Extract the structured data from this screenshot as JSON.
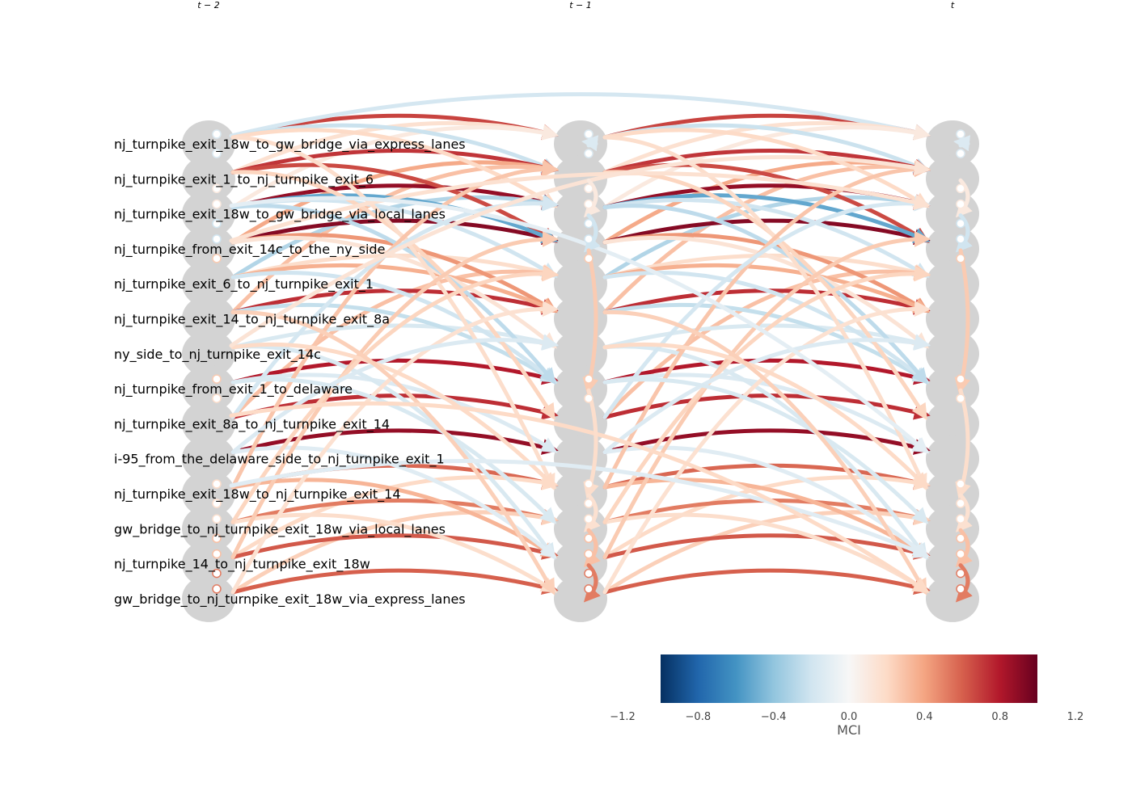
{
  "time_labels": [
    "t − 2",
    "t − 1",
    "t"
  ],
  "variables": [
    "nj_turnpike_exit_18w_to_gw_bridge_via_express_lanes",
    "nj_turnpike_exit_1_to_nj_turnpike_exit_6",
    "nj_turnpike_exit_18w_to_gw_bridge_via_local_lanes",
    "nj_turnpike_from_exit_14c_to_the_ny_side",
    "nj_turnpike_exit_6_to_nj_turnpike_exit_1",
    "nj_turnpike_exit_14_to_nj_turnpike_exit_8a",
    "ny_side_to_nj_turnpike_exit_14c",
    "nj_turnpike_from_exit_1_to_delaware",
    "nj_turnpike_exit_8a_to_nj_turnpike_exit_14",
    "i-95_from_the_delaware_side_to_nj_turnpike_exit_1",
    "nj_turnpike_exit_18w_to_nj_turnpike_exit_14",
    "gw_bridge_to_nj_turnpike_exit_18w_via_local_lanes",
    "nj_turnpike_14_to_nj_turnpike_exit_18w",
    "gw_bridge_to_nj_turnpike_exit_18w_via_express_lanes"
  ],
  "colorbar": {
    "title": "MCI",
    "ticks": [
      "−1.2",
      "−0.8",
      "−0.4",
      "0.0",
      "0.4",
      "0.8",
      "1.2"
    ],
    "tick_values": [
      -1.2,
      -0.8,
      -0.4,
      0.0,
      0.4,
      0.8,
      1.2
    ],
    "range": [
      -1.0,
      1.0
    ],
    "colormap": "RdBu_r",
    "stops": [
      "#053061",
      "#2166ac",
      "#4393c3",
      "#92c5de",
      "#d1e5f0",
      "#f7f7f7",
      "#fddbc7",
      "#f4a582",
      "#d6604d",
      "#b2182b",
      "#67001f"
    ]
  },
  "node_color": "#d3d3d3",
  "links": [
    {
      "from": 0,
      "to": 0,
      "lag": 1,
      "value": 0.68
    },
    {
      "from": 0,
      "to": 0,
      "lag": 2,
      "value": -0.18
    },
    {
      "from": 1,
      "to": 0,
      "lag": 1,
      "value": 0.16
    },
    {
      "from": 2,
      "to": 0,
      "lag": 1,
      "value": 0.1
    },
    {
      "from": 0,
      "to": 1,
      "lag": 1,
      "value": -0.22
    },
    {
      "from": 1,
      "to": 1,
      "lag": 1,
      "value": 0.72
    },
    {
      "from": 3,
      "to": 1,
      "lag": 1,
      "value": 0.38
    },
    {
      "from": 5,
      "to": 1,
      "lag": 1,
      "value": 0.3
    },
    {
      "from": 2,
      "to": 2,
      "lag": 1,
      "value": 0.88
    },
    {
      "from": 0,
      "to": 2,
      "lag": 1,
      "value": 0.2
    },
    {
      "from": 4,
      "to": 2,
      "lag": 1,
      "value": -0.3
    },
    {
      "from": 3,
      "to": 3,
      "lag": 1,
      "value": 0.92
    },
    {
      "from": 1,
      "to": 3,
      "lag": 1,
      "value": 0.66
    },
    {
      "from": 2,
      "to": 3,
      "lag": 1,
      "value": -0.52
    },
    {
      "from": 2,
      "to": 4,
      "lag": 1,
      "value": -0.2
    },
    {
      "from": 4,
      "to": 4,
      "lag": 1,
      "value": 0.18
    },
    {
      "from": 8,
      "to": 4,
      "lag": 1,
      "value": 0.3
    },
    {
      "from": 5,
      "to": 5,
      "lag": 1,
      "value": 0.74
    },
    {
      "from": 3,
      "to": 5,
      "lag": 1,
      "value": 0.44
    },
    {
      "from": 4,
      "to": 5,
      "lag": 1,
      "value": 0.36
    },
    {
      "from": 6,
      "to": 6,
      "lag": 1,
      "value": -0.16
    },
    {
      "from": 3,
      "to": 6,
      "lag": 1,
      "value": 0.14
    },
    {
      "from": 7,
      "to": 7,
      "lag": 1,
      "value": 0.8
    },
    {
      "from": 5,
      "to": 7,
      "lag": 1,
      "value": -0.24
    },
    {
      "from": 8,
      "to": 8,
      "lag": 1,
      "value": 0.74
    },
    {
      "from": 9,
      "to": 9,
      "lag": 1,
      "value": 0.88
    },
    {
      "from": 7,
      "to": 9,
      "lag": 1,
      "value": -0.14
    },
    {
      "from": 10,
      "to": 10,
      "lag": 1,
      "value": 0.58
    },
    {
      "from": 12,
      "to": 10,
      "lag": 1,
      "value": 0.2
    },
    {
      "from": 11,
      "to": 11,
      "lag": 1,
      "value": 0.52
    },
    {
      "from": 13,
      "to": 11,
      "lag": 1,
      "value": 0.24
    },
    {
      "from": 12,
      "to": 12,
      "lag": 1,
      "value": 0.62
    },
    {
      "from": 10,
      "to": 12,
      "lag": 1,
      "value": 0.34
    },
    {
      "from": 13,
      "to": 13,
      "lag": 1,
      "value": 0.6
    },
    {
      "from": 11,
      "to": 13,
      "lag": 1,
      "value": 0.18
    },
    {
      "from": 6,
      "to": 12,
      "lag": 1,
      "value": -0.16
    },
    {
      "from": 9,
      "to": 12,
      "lag": 1,
      "value": -0.12
    },
    {
      "from": 4,
      "to": 7,
      "lag": 1,
      "value": -0.2
    },
    {
      "from": 2,
      "to": 7,
      "lag": 1,
      "value": -0.26
    },
    {
      "from": 1,
      "to": 8,
      "lag": 1,
      "value": 0.22
    },
    {
      "from": 0,
      "to": 10,
      "lag": 1,
      "value": 0.18
    },
    {
      "from": 10,
      "to": 1,
      "lag": 1,
      "value": 0.28
    },
    {
      "from": 12,
      "to": 3,
      "lag": 1,
      "value": 0.26
    },
    {
      "from": 11,
      "to": 4,
      "lag": 1,
      "value": 0.22
    },
    {
      "from": 13,
      "to": 5,
      "lag": 1,
      "value": 0.16
    },
    {
      "from": 8,
      "to": 2,
      "lag": 1,
      "value": -0.18
    },
    {
      "from": 9,
      "to": 6,
      "lag": 1,
      "value": -0.14
    },
    {
      "from": 6,
      "to": 10,
      "lag": 1,
      "value": 0.2
    },
    {
      "from": 7,
      "to": 11,
      "lag": 1,
      "value": -0.16
    },
    {
      "from": 5,
      "to": 13,
      "lag": 1,
      "value": 0.24
    },
    {
      "from": 3,
      "to": 2,
      "lag": 2,
      "value": 0.16
    },
    {
      "from": 10,
      "to": 12,
      "lag": 2,
      "value": -0.12
    },
    {
      "from": 8,
      "to": 13,
      "lag": 2,
      "value": 0.2
    },
    {
      "from": 2,
      "to": 9,
      "lag": 2,
      "value": -0.1
    },
    {
      "from": 6,
      "to": 1,
      "lag": 2,
      "value": 0.14
    },
    {
      "from": 0,
      "to": 0,
      "lag": 0,
      "value": -0.14
    },
    {
      "from": 1,
      "to": 2,
      "lag": 0,
      "value": 0.1
    },
    {
      "from": 2,
      "to": 3,
      "lag": 0,
      "value": -0.2
    },
    {
      "from": 3,
      "to": 7,
      "lag": 0,
      "value": 0.26
    },
    {
      "from": 7,
      "to": 10,
      "lag": 0,
      "value": 0.18
    },
    {
      "from": 10,
      "to": 11,
      "lag": 0,
      "value": 0.16
    },
    {
      "from": 11,
      "to": 12,
      "lag": 0,
      "value": 0.3
    },
    {
      "from": 12,
      "to": 13,
      "lag": 0,
      "value": 0.52
    }
  ]
}
